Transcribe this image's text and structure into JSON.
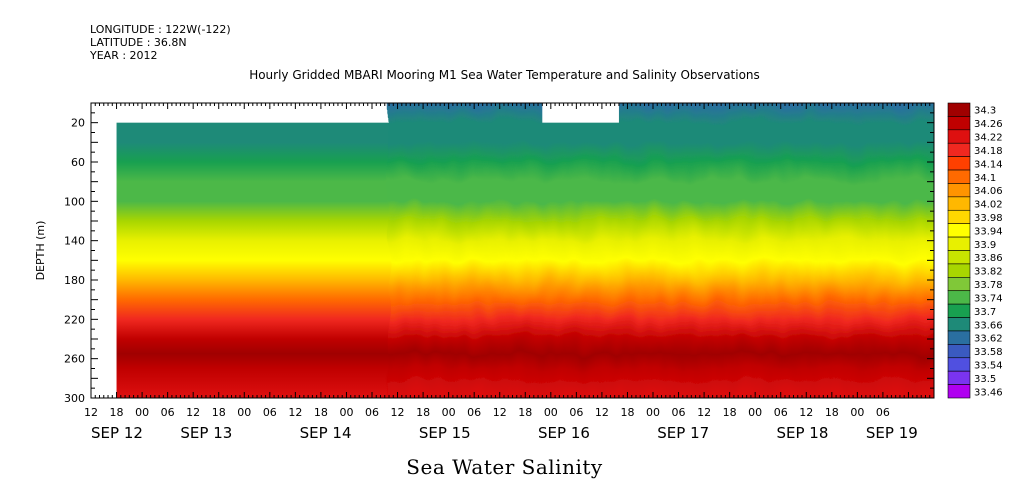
{
  "header": {
    "longitude": "LONGITUDE : 122W(-122)",
    "latitude": "LATITUDE : 36.8N",
    "year": "YEAR : 2012",
    "title": "Hourly Gridded MBARI Mooring M1 Sea Water Temperature and Salinity Observations"
  },
  "footer": {
    "title": "Sea Water Salinity"
  },
  "chart_data": {
    "type": "heatmap",
    "title": "Hourly Gridded MBARI Mooring M1 Sea Water Temperature and Salinity Observations",
    "variable": "Sea Water Salinity",
    "ylabel": "DEPTH (m)",
    "xlabel": "",
    "y_inverted": true,
    "ylim": [
      300,
      0
    ],
    "y_ticks": [
      20,
      60,
      100,
      140,
      180,
      220,
      260,
      300
    ],
    "x_hours_range": [
      0,
      198
    ],
    "x_hour_ticks": [
      {
        "h": 0,
        "label": "12"
      },
      {
        "h": 6,
        "label": "18"
      },
      {
        "h": 12,
        "label": "00"
      },
      {
        "h": 18,
        "label": "06"
      },
      {
        "h": 24,
        "label": "12"
      },
      {
        "h": 30,
        "label": "18"
      },
      {
        "h": 36,
        "label": "00"
      },
      {
        "h": 42,
        "label": "06"
      },
      {
        "h": 48,
        "label": "12"
      },
      {
        "h": 54,
        "label": "18"
      },
      {
        "h": 60,
        "label": "00"
      },
      {
        "h": 66,
        "label": "06"
      },
      {
        "h": 72,
        "label": "12"
      },
      {
        "h": 78,
        "label": "18"
      },
      {
        "h": 84,
        "label": "00"
      },
      {
        "h": 90,
        "label": "06"
      },
      {
        "h": 96,
        "label": "12"
      },
      {
        "h": 102,
        "label": "18"
      },
      {
        "h": 108,
        "label": "00"
      },
      {
        "h": 114,
        "label": "06"
      },
      {
        "h": 120,
        "label": "12"
      },
      {
        "h": 126,
        "label": "18"
      },
      {
        "h": 132,
        "label": "00"
      },
      {
        "h": 138,
        "label": "06"
      },
      {
        "h": 144,
        "label": "12"
      },
      {
        "h": 150,
        "label": "18"
      },
      {
        "h": 156,
        "label": "00"
      },
      {
        "h": 162,
        "label": "06"
      },
      {
        "h": 168,
        "label": "12"
      },
      {
        "h": 174,
        "label": "18"
      },
      {
        "h": 180,
        "label": "00"
      },
      {
        "h": 186,
        "label": "06"
      }
    ],
    "x_date_labels": [
      {
        "h": 0,
        "label": "SEP 12"
      },
      {
        "h": 21,
        "label": "SEP 13"
      },
      {
        "h": 49,
        "label": "SEP 14"
      },
      {
        "h": 77,
        "label": "SEP 15"
      },
      {
        "h": 105,
        "label": "SEP 16"
      },
      {
        "h": 133,
        "label": "SEP 17"
      },
      {
        "h": 161,
        "label": "SEP 18"
      },
      {
        "h": 182,
        "label": "SEP 19"
      }
    ],
    "data_extent": {
      "start_hour": 6,
      "deep_only_until_hour": 71,
      "surface_gap_hours": [
        106,
        124
      ],
      "surface_gap_top_depth": 20
    },
    "colorbar": {
      "levels": [
        "34.3",
        "34.26",
        "34.22",
        "34.18",
        "34.14",
        "34.1",
        "34.06",
        "34.02",
        "33.98",
        "33.94",
        "33.9",
        "33.86",
        "33.82",
        "33.78",
        "33.74",
        "33.7",
        "33.66",
        "33.62",
        "33.58",
        "33.54",
        "33.5",
        "33.46"
      ],
      "colors": [
        "#a00000",
        "#c00000",
        "#de1010",
        "#f02820",
        "#ff4000",
        "#ff6a00",
        "#ff9400",
        "#ffb800",
        "#ffd800",
        "#ffff00",
        "#e8f000",
        "#c8e400",
        "#a8d600",
        "#80c838",
        "#4cb848",
        "#18a050",
        "#1e8a78",
        "#2a6fa0",
        "#3a5ac0",
        "#5050e0",
        "#7a34f0",
        "#b000f0"
      ]
    },
    "profile": [
      {
        "depth": 0,
        "value": 33.6
      },
      {
        "depth": 20,
        "value": 33.63
      },
      {
        "depth": 40,
        "value": 33.65
      },
      {
        "depth": 60,
        "value": 33.68
      },
      {
        "depth": 80,
        "value": 33.7
      },
      {
        "depth": 100,
        "value": 33.71
      },
      {
        "depth": 120,
        "value": 33.8
      },
      {
        "depth": 140,
        "value": 33.89
      },
      {
        "depth": 160,
        "value": 33.93
      },
      {
        "depth": 180,
        "value": 33.98
      },
      {
        "depth": 200,
        "value": 34.08
      },
      {
        "depth": 220,
        "value": 34.16
      },
      {
        "depth": 240,
        "value": 34.22
      },
      {
        "depth": 255,
        "value": 34.27
      },
      {
        "depth": 270,
        "value": 34.22
      },
      {
        "depth": 300,
        "value": 34.2
      }
    ]
  }
}
